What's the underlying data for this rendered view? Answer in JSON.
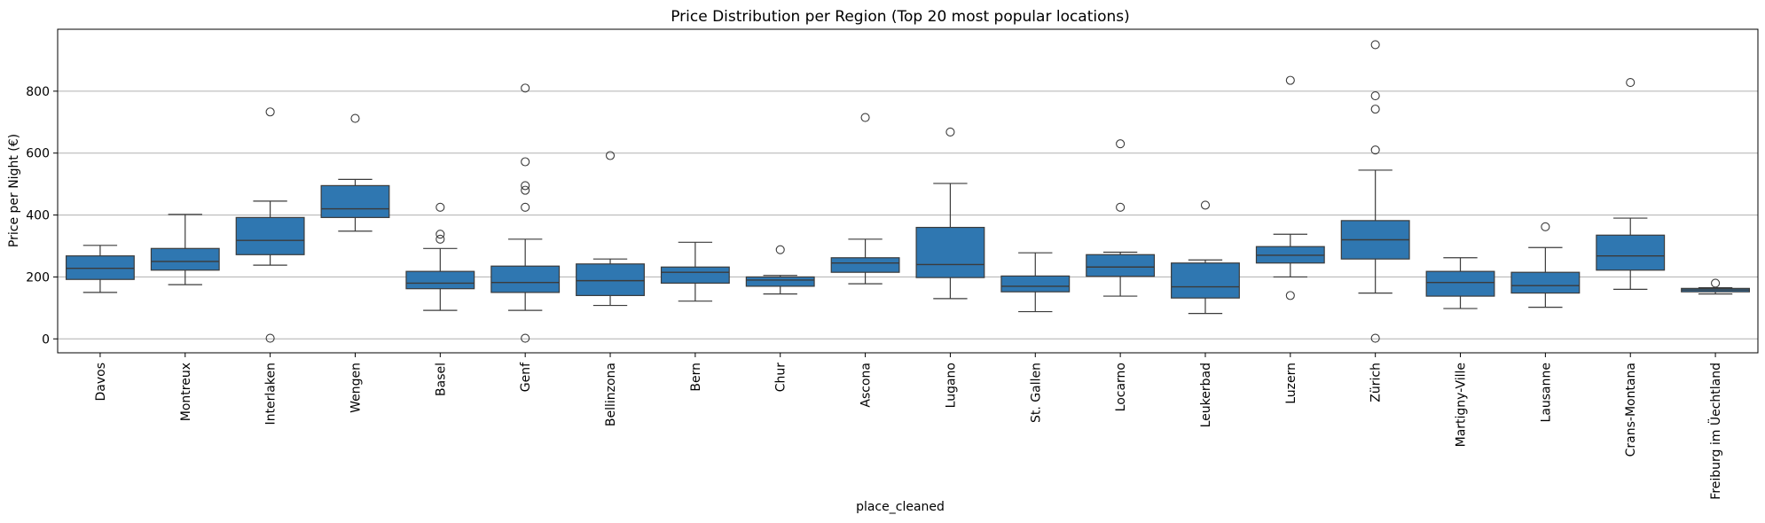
{
  "chart_data": {
    "type": "boxplot",
    "title": "Price Distribution per Region (Top 20 most popular locations)",
    "xlabel": "place_cleaned",
    "ylabel": "Price per Night (€)",
    "ylim": [
      -45,
      1000
    ],
    "yticks": [
      0,
      200,
      400,
      600,
      800
    ],
    "grid": "y",
    "box_color": "#2f77b1",
    "edge_color": "#3b3b3b",
    "categories": [
      "Davos",
      "Montreux",
      "Interlaken",
      "Wengen",
      "Basel",
      "Genf",
      "Bellinzona",
      "Bern",
      "Chur",
      "Ascona",
      "Lugano",
      "St. Gallen",
      "Locarno",
      "Leukerbad",
      "Luzern",
      "Zürich",
      "Martigny-Ville",
      "Lausanne",
      "Crans-Montana",
      "Freiburg im Üechtland"
    ],
    "boxes": [
      {
        "category": "Davos",
        "whisker_low": 150,
        "q1": 192,
        "median": 228,
        "q3": 268,
        "whisker_high": 302,
        "outliers": []
      },
      {
        "category": "Montreux",
        "whisker_low": 175,
        "q1": 222,
        "median": 250,
        "q3": 292,
        "whisker_high": 402,
        "outliers": []
      },
      {
        "category": "Interlaken",
        "whisker_low": 238,
        "q1": 272,
        "median": 318,
        "q3": 392,
        "whisker_high": 445,
        "outliers": [
          733,
          2
        ]
      },
      {
        "category": "Wengen",
        "whisker_low": 348,
        "q1": 392,
        "median": 420,
        "q3": 495,
        "whisker_high": 515,
        "outliers": [
          712
        ]
      },
      {
        "category": "Basel",
        "whisker_low": 92,
        "q1": 162,
        "median": 180,
        "q3": 218,
        "whisker_high": 292,
        "outliers": [
          425,
          338,
          322
        ]
      },
      {
        "category": "Genf",
        "whisker_low": 92,
        "q1": 150,
        "median": 182,
        "q3": 235,
        "whisker_high": 322,
        "outliers": [
          810,
          572,
          495,
          480,
          425,
          2
        ]
      },
      {
        "category": "Bellinzona",
        "whisker_low": 108,
        "q1": 140,
        "median": 188,
        "q3": 242,
        "whisker_high": 258,
        "outliers": [
          592
        ]
      },
      {
        "category": "Bern",
        "whisker_low": 122,
        "q1": 180,
        "median": 215,
        "q3": 232,
        "whisker_high": 312,
        "outliers": []
      },
      {
        "category": "Chur",
        "whisker_low": 145,
        "q1": 170,
        "median": 190,
        "q3": 200,
        "whisker_high": 205,
        "outliers": [
          288
        ]
      },
      {
        "category": "Ascona",
        "whisker_low": 178,
        "q1": 215,
        "median": 245,
        "q3": 262,
        "whisker_high": 322,
        "outliers": [
          715
        ]
      },
      {
        "category": "Lugano",
        "whisker_low": 130,
        "q1": 198,
        "median": 240,
        "q3": 360,
        "whisker_high": 502,
        "outliers": [
          668
        ]
      },
      {
        "category": "St. Gallen",
        "whisker_low": 88,
        "q1": 152,
        "median": 170,
        "q3": 203,
        "whisker_high": 278,
        "outliers": []
      },
      {
        "category": "Locarno",
        "whisker_low": 138,
        "q1": 202,
        "median": 232,
        "q3": 272,
        "whisker_high": 280,
        "outliers": [
          630,
          425
        ]
      },
      {
        "category": "Leukerbad",
        "whisker_low": 82,
        "q1": 132,
        "median": 168,
        "q3": 245,
        "whisker_high": 255,
        "outliers": [
          432
        ]
      },
      {
        "category": "Luzern",
        "whisker_low": 200,
        "q1": 245,
        "median": 270,
        "q3": 298,
        "whisker_high": 338,
        "outliers": [
          835,
          140
        ]
      },
      {
        "category": "Zürich",
        "whisker_low": 148,
        "q1": 258,
        "median": 320,
        "q3": 382,
        "whisker_high": 545,
        "outliers": [
          950,
          785,
          742,
          610,
          2
        ]
      },
      {
        "category": "Martigny-Ville",
        "whisker_low": 98,
        "q1": 138,
        "median": 182,
        "q3": 218,
        "whisker_high": 262,
        "outliers": []
      },
      {
        "category": "Lausanne",
        "whisker_low": 102,
        "q1": 148,
        "median": 172,
        "q3": 215,
        "whisker_high": 295,
        "outliers": [
          362
        ]
      },
      {
        "category": "Crans-Montana",
        "whisker_low": 160,
        "q1": 222,
        "median": 268,
        "q3": 335,
        "whisker_high": 390,
        "outliers": [
          828
        ]
      },
      {
        "category": "Freiburg im Üechtland",
        "whisker_low": 145,
        "q1": 152,
        "median": 158,
        "q3": 163,
        "whisker_high": 165,
        "outliers": [
          180
        ]
      }
    ]
  }
}
